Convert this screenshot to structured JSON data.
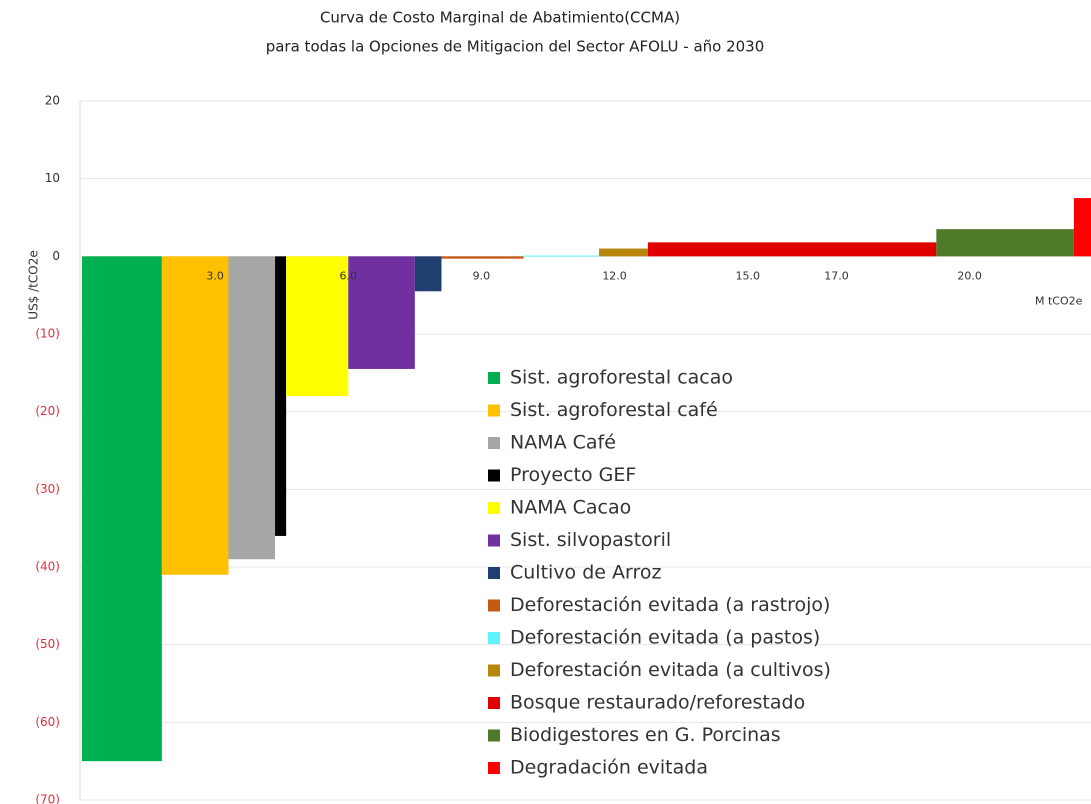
{
  "chart_data": {
    "type": "macc",
    "title": "Curva de Costo Marginal de Abatimiento(CCMA)",
    "subtitle": "para todas la Opciones de Mitigacion del Sector AFOLU - año 2030",
    "y_label": "US$ /tCO2e",
    "x_label": "M tCO2e",
    "ylim": [
      -70,
      20
    ],
    "yticks": [
      20,
      10,
      0,
      {
        "value": -10,
        "label": "(10)"
      },
      {
        "value": -20,
        "label": "(20)"
      },
      {
        "value": -30,
        "label": "(30)"
      },
      {
        "value": -40,
        "label": "(40)"
      },
      {
        "value": -50,
        "label": "(50)"
      },
      {
        "value": -60,
        "label": "(60)"
      },
      {
        "value": -70,
        "label": "(70)"
      }
    ],
    "negative_tick_color": "#e0303a",
    "xlim": [
      0,
      22.6
    ],
    "xticks": [
      {
        "value": 3,
        "label": "3.0"
      },
      {
        "value": 6,
        "label": "6.0"
      },
      {
        "value": 9,
        "label": "9.0"
      },
      {
        "value": 12,
        "label": "12.0"
      },
      {
        "value": 15,
        "label": "15.0"
      },
      {
        "value": 17,
        "label": "17.0"
      },
      {
        "value": 20,
        "label": "20.0"
      }
    ],
    "grid": true,
    "series": [
      {
        "name": "Sist. agroforestal cacao",
        "color": "#00b050",
        "value": -65,
        "width": 1.8
      },
      {
        "name": "Sist. agroforestal café",
        "color": "#ffc000",
        "value": -41,
        "width": 1.5
      },
      {
        "name": "NAMA Café",
        "color": "#a6a6a6",
        "value": -39,
        "width": 1.05
      },
      {
        "name": "Proyecto GEF",
        "color": "#000000",
        "value": -36,
        "width": 0.25
      },
      {
        "name": "NAMA Cacao",
        "color": "#ffff00",
        "value": -18,
        "width": 1.4
      },
      {
        "name": "Sist. silvopastoril",
        "color": "#7030a0",
        "value": -14.5,
        "width": 1.5
      },
      {
        "name": "Cultivo de Arroz",
        "color": "#1f3f70",
        "value": -4.5,
        "width": 0.6
      },
      {
        "name": "Deforestación evitada (a rastrojo)",
        "color": "#c55a11",
        "value": -0.3,
        "width": 1.85
      },
      {
        "name": "Deforestación evitada (a pastos)",
        "color": "#5ff5ff",
        "value": 0.1,
        "width": 1.7
      },
      {
        "name": "Deforestación evitada (a cultivos)",
        "color": "#b8860b",
        "value": 1,
        "width": 1.1
      },
      {
        "name": "Bosque restaurado/reforestado",
        "color": "#e00000",
        "value": 1.8,
        "width": 6.5
      },
      {
        "name": "Biodigestores en G. Porcinas",
        "color": "#4e7a2a",
        "value": 3.5,
        "width": 3.1
      },
      {
        "name": "Degradación evitada",
        "color": "#ff0000",
        "value": 7.5,
        "width": 0.5
      }
    ]
  }
}
